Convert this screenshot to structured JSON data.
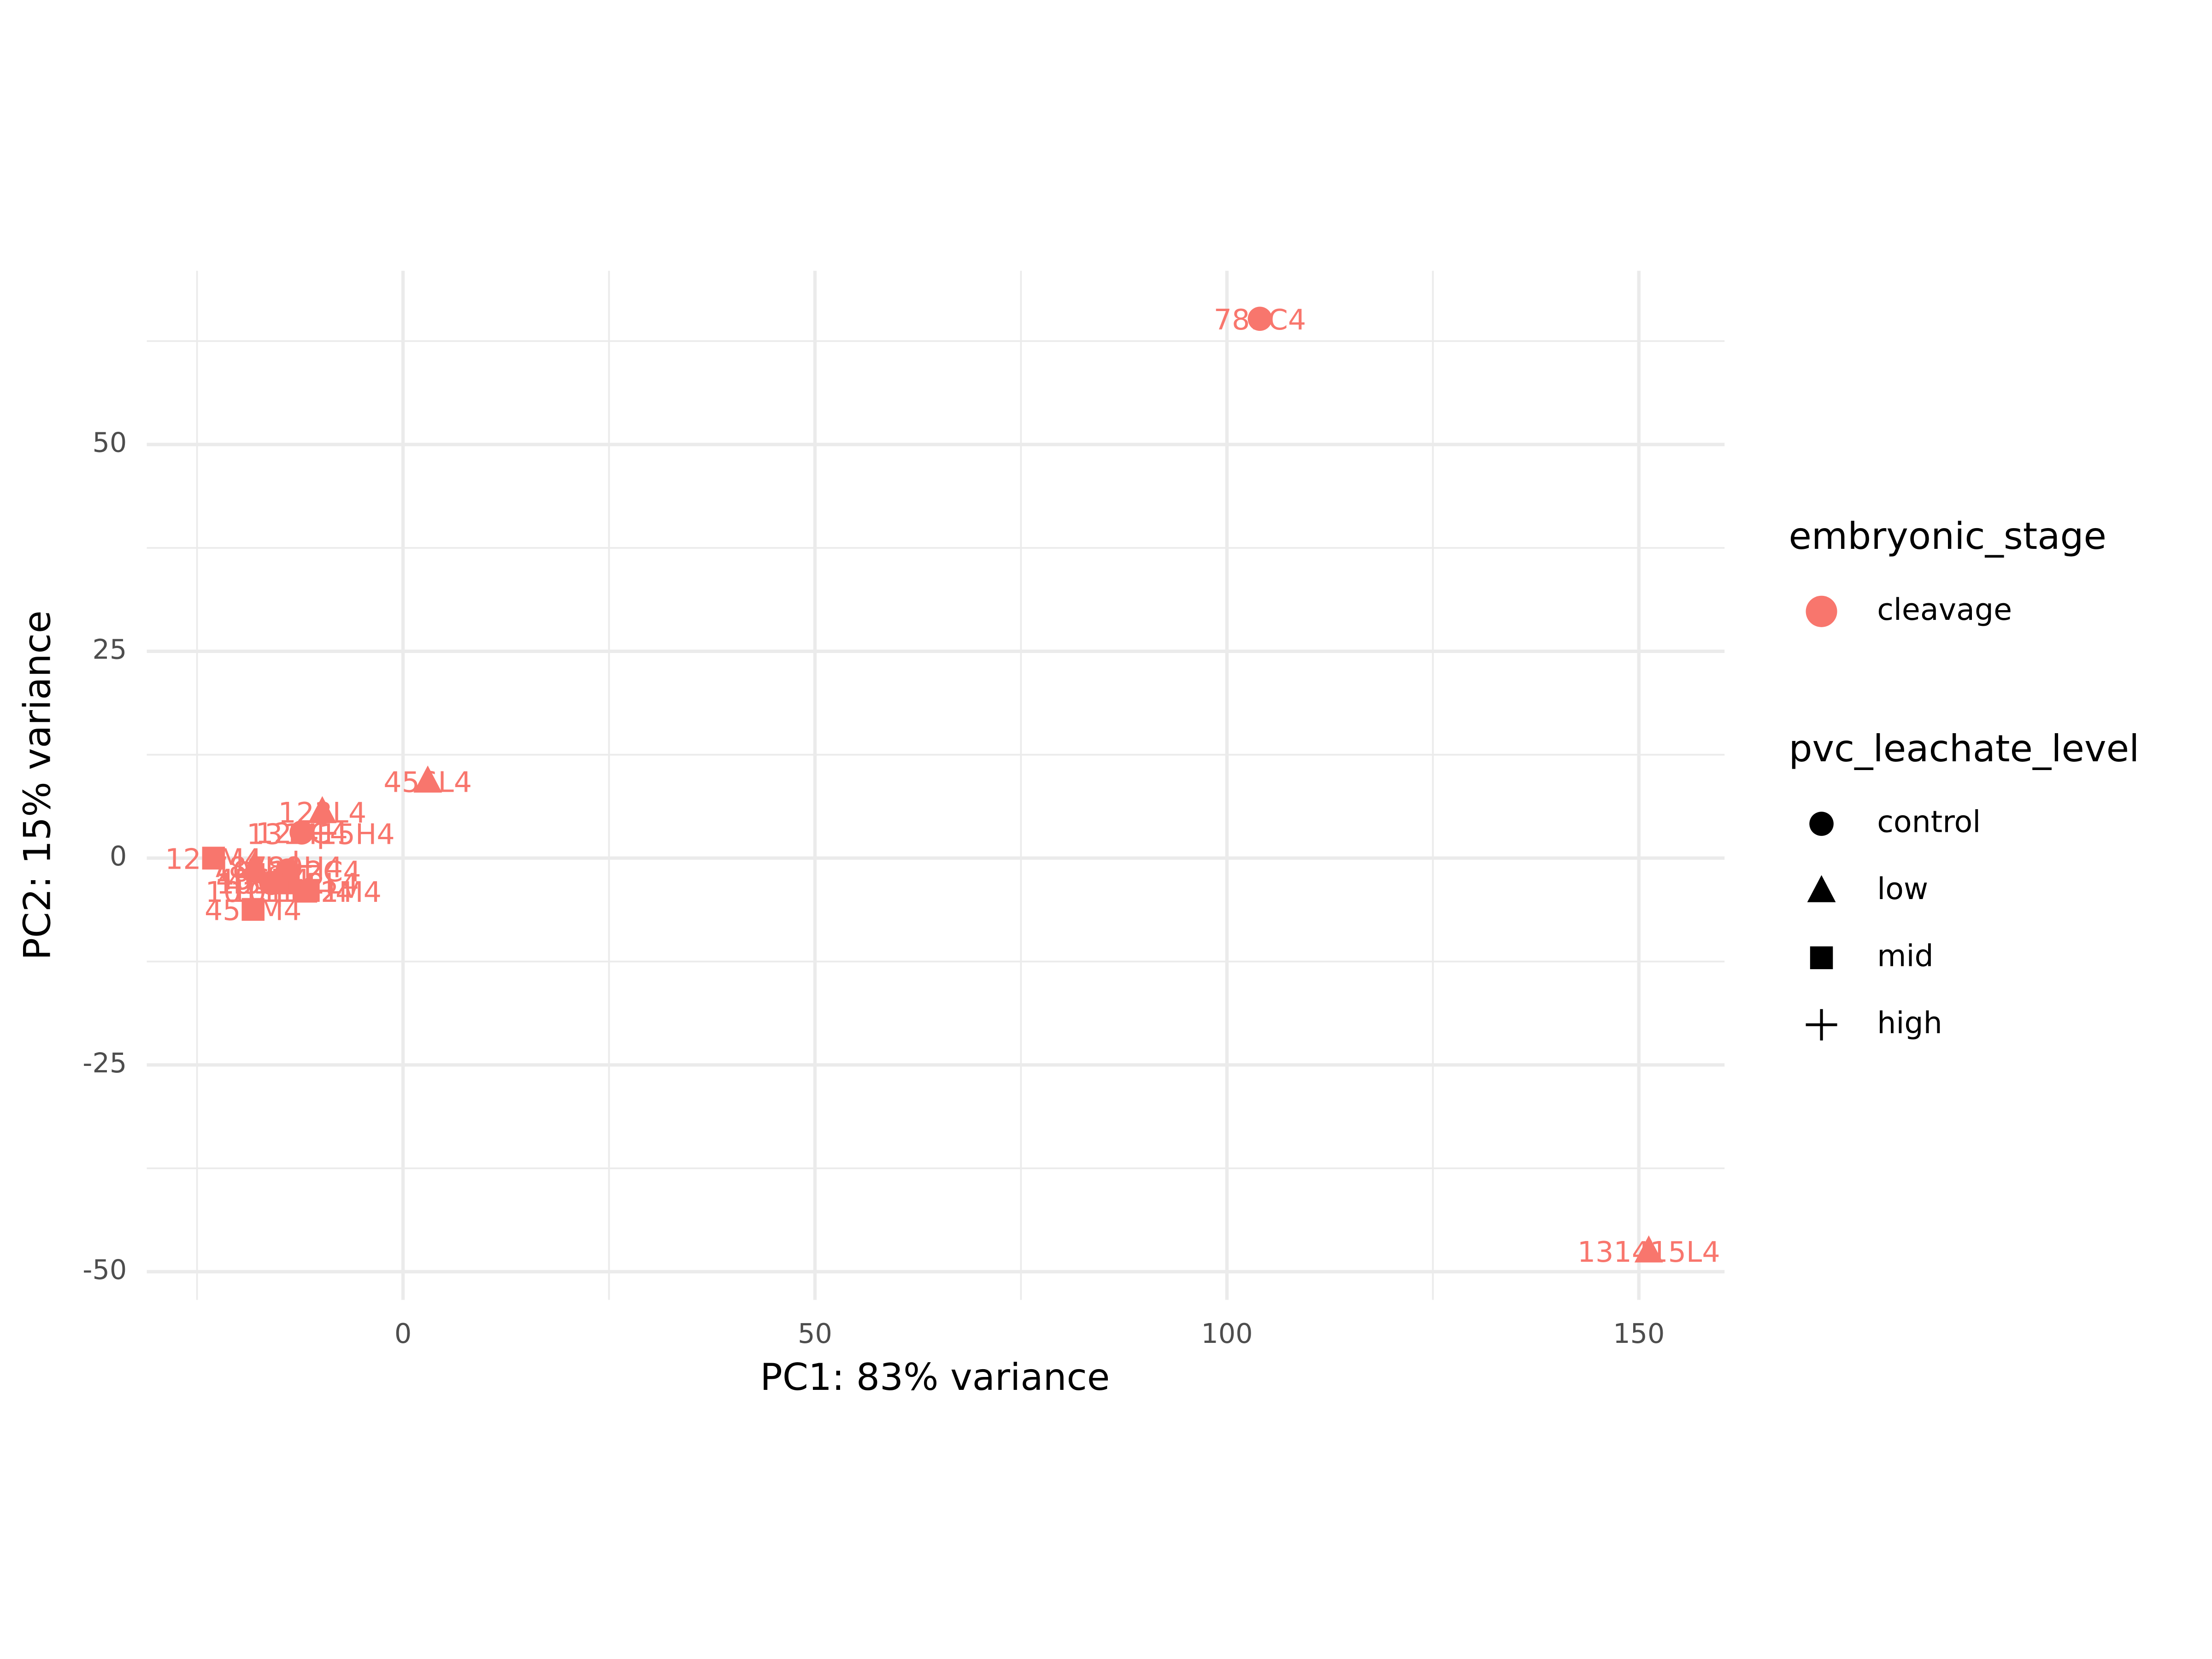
{
  "chart_data": {
    "type": "scatter",
    "xlabel": "PC1: 83% variance",
    "ylabel": "PC2: 15% variance",
    "xlim": [
      -31.1,
      160.4
    ],
    "ylim": [
      -53.4,
      71
    ],
    "xticks": [
      0,
      50,
      100,
      150
    ],
    "yticks": [
      -50,
      -25,
      0,
      25,
      50
    ],
    "xminor": [
      -25,
      25,
      75,
      125
    ],
    "yminor": [
      -37.5,
      -12.5,
      12.5,
      37.5,
      62.5
    ],
    "grid": true,
    "color": "#F8766D",
    "x": [
      104,
      151.2,
      3,
      -9.8,
      -12.3,
      -10,
      -23,
      -18.2,
      -11.8,
      -16,
      -14,
      -17,
      -13,
      -15,
      -18,
      -14
    ],
    "values": [
      65.2,
      -47.5,
      9.3,
      5.6,
      3.1,
      3,
      0,
      -6.2,
      -4,
      -3,
      -1.5,
      -2.5,
      -1,
      -4,
      -1,
      -3
    ],
    "labels": [
      "789C4",
      "131415L4",
      "456L4",
      "123L4",
      "123C4",
      "131415H4",
      "123M4",
      "456M4",
      "101112M4",
      "456C4",
      "101112C4",
      "456H4",
      "789H4",
      "101112H4",
      "789L4",
      "101112L4"
    ],
    "levels": [
      "control",
      "low",
      "low",
      "low",
      "control",
      "high",
      "mid",
      "mid",
      "mid",
      "control",
      "control",
      "high",
      "high",
      "high",
      "low",
      "low"
    ],
    "legend": [
      {
        "title": "embryonic_stage",
        "entries": [
          "cleavage"
        ]
      },
      {
        "title": "pvc_leachate_level",
        "entries": [
          "control",
          "low",
          "mid",
          "high"
        ]
      }
    ]
  }
}
